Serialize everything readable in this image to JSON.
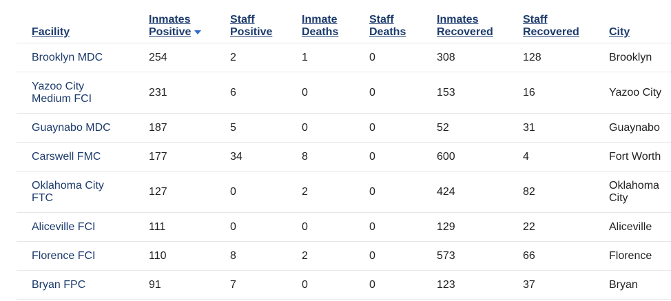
{
  "table": {
    "columns": [
      {
        "key": "facility",
        "line1": "Facility",
        "line2": ""
      },
      {
        "key": "inmates_positive",
        "line1": "Inmates",
        "line2": "Positive",
        "sorted": "desc"
      },
      {
        "key": "staff_positive",
        "line1": "Staff",
        "line2": "Positive"
      },
      {
        "key": "inmate_deaths",
        "line1": "Inmate",
        "line2": "Deaths"
      },
      {
        "key": "staff_deaths",
        "line1": "Staff",
        "line2": "Deaths"
      },
      {
        "key": "inmates_recovered",
        "line1": "Inmates",
        "line2": "Recovered"
      },
      {
        "key": "staff_recovered",
        "line1": "Staff",
        "line2": "Recovered"
      },
      {
        "key": "city",
        "line1": "City",
        "line2": ""
      }
    ],
    "rows": [
      {
        "facility": [
          "Brooklyn MDC"
        ],
        "inmates_positive": "254",
        "staff_positive": "2",
        "inmate_deaths": "1",
        "staff_deaths": "0",
        "inmates_recovered": "308",
        "staff_recovered": "128",
        "city": [
          "Brooklyn"
        ]
      },
      {
        "facility": [
          "Yazoo City",
          "Medium FCI"
        ],
        "inmates_positive": "231",
        "staff_positive": "6",
        "inmate_deaths": "0",
        "staff_deaths": "0",
        "inmates_recovered": "153",
        "staff_recovered": "16",
        "city": [
          "Yazoo City"
        ]
      },
      {
        "facility": [
          "Guaynabo MDC"
        ],
        "inmates_positive": "187",
        "staff_positive": "5",
        "inmate_deaths": "0",
        "staff_deaths": "0",
        "inmates_recovered": "52",
        "staff_recovered": "31",
        "city": [
          "Guaynabo"
        ]
      },
      {
        "facility": [
          "Carswell FMC"
        ],
        "inmates_positive": "177",
        "staff_positive": "34",
        "inmate_deaths": "8",
        "staff_deaths": "0",
        "inmates_recovered": "600",
        "staff_recovered": "4",
        "city": [
          "Fort Worth"
        ]
      },
      {
        "facility": [
          "Oklahoma City",
          "FTC"
        ],
        "inmates_positive": "127",
        "staff_positive": "0",
        "inmate_deaths": "2",
        "staff_deaths": "0",
        "inmates_recovered": "424",
        "staff_recovered": "82",
        "city": [
          "Oklahoma",
          "City"
        ]
      },
      {
        "facility": [
          "Aliceville FCI"
        ],
        "inmates_positive": "111",
        "staff_positive": "0",
        "inmate_deaths": "0",
        "staff_deaths": "0",
        "inmates_recovered": "129",
        "staff_recovered": "22",
        "city": [
          "Aliceville"
        ]
      },
      {
        "facility": [
          "Florence FCI"
        ],
        "inmates_positive": "110",
        "staff_positive": "8",
        "inmate_deaths": "2",
        "staff_deaths": "0",
        "inmates_recovered": "573",
        "staff_recovered": "66",
        "city": [
          "Florence"
        ]
      },
      {
        "facility": [
          "Bryan FPC"
        ],
        "inmates_positive": "91",
        "staff_positive": "7",
        "inmate_deaths": "0",
        "staff_deaths": "0",
        "inmates_recovered": "123",
        "staff_recovered": "37",
        "city": [
          "Bryan"
        ]
      }
    ]
  },
  "colors": {
    "link": "#1b3a6b",
    "sort_arrow": "#2a6ac8",
    "row_border": "#e6e6e6"
  },
  "icons": {
    "sort": "sort-descending-arrow-icon"
  }
}
